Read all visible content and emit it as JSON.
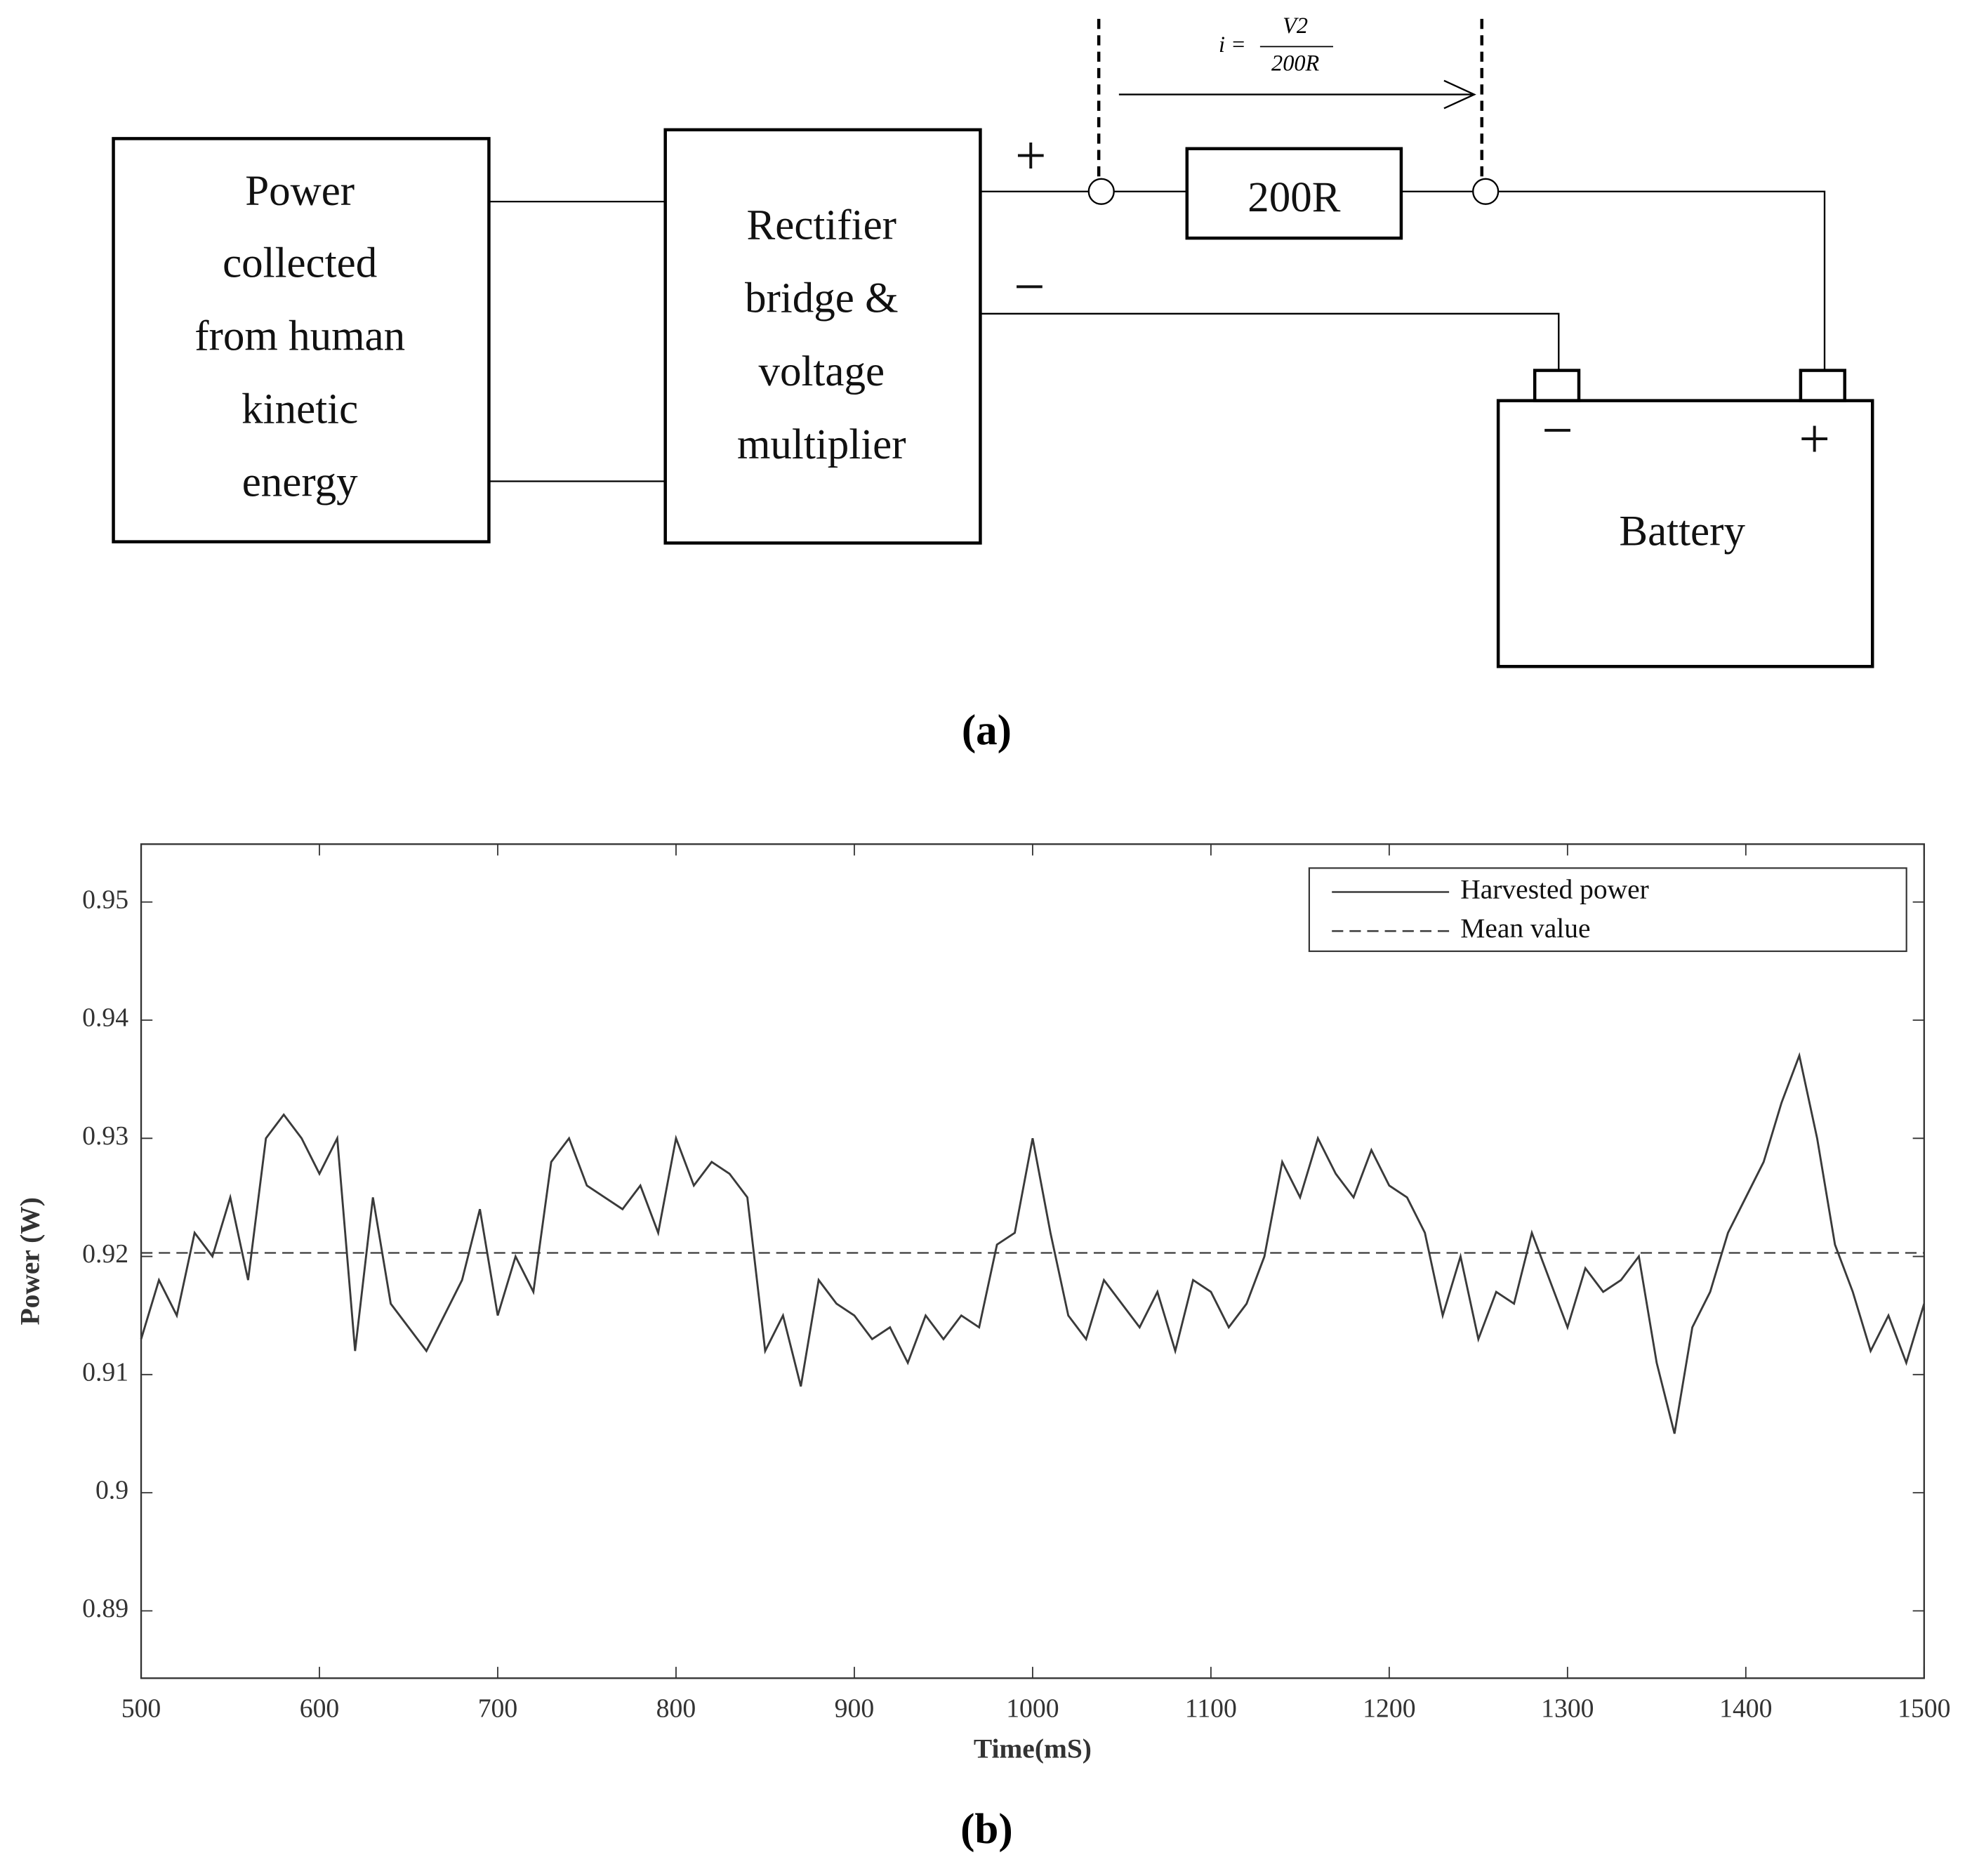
{
  "diagram": {
    "source_box": [
      "Power",
      "collected",
      "from human",
      "kinetic",
      "energy"
    ],
    "converter_box": [
      "Rectifier",
      "bridge &",
      "voltage",
      "multiplier"
    ],
    "resistor": "200R",
    "battery": "Battery",
    "formula": {
      "lhs": "i =",
      "numerator": "V2",
      "denominator": "200R"
    },
    "polarity": {
      "converter_plus": "+",
      "converter_minus": "−",
      "battery_minus": "−",
      "battery_plus": "+"
    },
    "caption": "(a)"
  },
  "chart_data": {
    "type": "line",
    "caption": "(b)",
    "xlabel": "Time(mS)",
    "ylabel": "Power (W)",
    "x": [
      500,
      510,
      520,
      530,
      540,
      550,
      560,
      570,
      580,
      590,
      600,
      610,
      620,
      630,
      640,
      650,
      660,
      670,
      680,
      690,
      700,
      710,
      720,
      730,
      740,
      750,
      760,
      770,
      780,
      790,
      800,
      810,
      820,
      830,
      840,
      850,
      860,
      870,
      880,
      890,
      900,
      910,
      920,
      930,
      940,
      950,
      960,
      970,
      980,
      990,
      1000,
      1010,
      1020,
      1030,
      1040,
      1050,
      1060,
      1070,
      1080,
      1090,
      1100,
      1110,
      1120,
      1130,
      1140,
      1150,
      1160,
      1170,
      1180,
      1190,
      1200,
      1210,
      1220,
      1230,
      1240,
      1250,
      1260,
      1270,
      1280,
      1290,
      1300,
      1310,
      1320,
      1330,
      1340,
      1350,
      1360,
      1370,
      1380,
      1390,
      1400,
      1410,
      1420,
      1430,
      1440,
      1450,
      1460,
      1470,
      1480,
      1490,
      1500
    ],
    "series": [
      {
        "name": "Harvested power",
        "color": "#3a3a3a",
        "dash": false,
        "values": [
          0.913,
          0.918,
          0.915,
          0.922,
          0.92,
          0.925,
          0.918,
          0.93,
          0.932,
          0.93,
          0.927,
          0.93,
          0.912,
          0.925,
          0.916,
          0.914,
          0.912,
          0.915,
          0.918,
          0.924,
          0.915,
          0.92,
          0.917,
          0.928,
          0.93,
          0.926,
          0.925,
          0.924,
          0.926,
          0.922,
          0.93,
          0.926,
          0.928,
          0.927,
          0.925,
          0.912,
          0.915,
          0.909,
          0.918,
          0.916,
          0.915,
          0.913,
          0.914,
          0.911,
          0.915,
          0.913,
          0.915,
          0.914,
          0.921,
          0.922,
          0.93,
          0.922,
          0.915,
          0.913,
          0.918,
          0.916,
          0.914,
          0.917,
          0.912,
          0.918,
          0.917,
          0.914,
          0.916,
          0.92,
          0.928,
          0.925,
          0.93,
          0.927,
          0.925,
          0.929,
          0.926,
          0.925,
          0.922,
          0.915,
          0.92,
          0.913,
          0.917,
          0.916,
          0.922,
          0.918,
          0.914,
          0.919,
          0.917,
          0.918,
          0.92,
          0.911,
          0.905,
          0.914,
          0.917,
          0.922,
          0.925,
          0.928,
          0.933,
          0.937,
          0.93,
          0.921,
          0.917,
          0.912,
          0.915,
          0.911,
          0.916
        ]
      },
      {
        "name": "Mean value",
        "color": "#3a3a3a",
        "dash": true,
        "x": [
          500,
          1500
        ],
        "values": [
          0.9203,
          0.9203
        ]
      }
    ],
    "xlim": [
      500,
      1500
    ],
    "ylim": [
      0.8843,
      0.9549
    ],
    "xticks": [
      500,
      600,
      700,
      800,
      900,
      1000,
      1100,
      1200,
      1300,
      1400,
      1500
    ],
    "yticks": [
      0.89,
      0.9,
      0.91,
      0.92,
      0.93,
      0.94,
      0.95
    ],
    "grid": false,
    "legend": "upper right"
  }
}
